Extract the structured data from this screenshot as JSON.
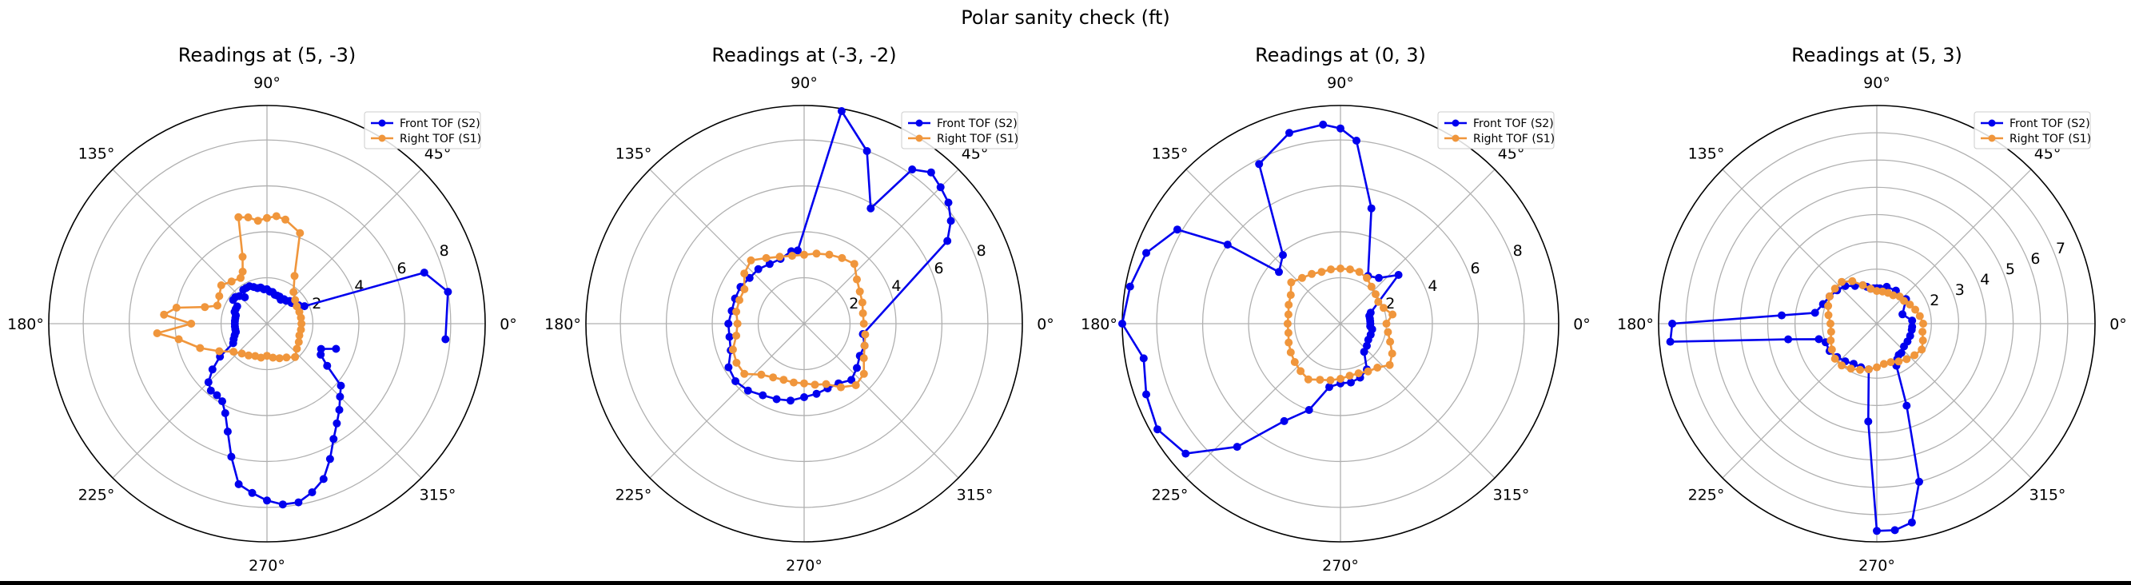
{
  "figure": {
    "title": "Polar sanity check (ft)"
  },
  "colors": {
    "front": "#0000ee",
    "right": "#f0963c",
    "grid": "#b0b0b0",
    "frame": "#000000"
  },
  "angle_ticks": [
    "0°",
    "45°",
    "90°",
    "135°",
    "180°",
    "225°",
    "270°",
    "315°"
  ],
  "chart_data": [
    {
      "type": "polar-line",
      "title": "Readings at (5, -3)",
      "rmax": 9.5,
      "rticks": [
        2,
        4,
        6,
        8
      ],
      "legend": "top-right",
      "series": [
        {
          "name": "Front TOF (S2)",
          "color": "#0000ee",
          "theta": [
            -5,
            10,
            18,
            25,
            30,
            35,
            40,
            45,
            50,
            55,
            60,
            65,
            70,
            75,
            80,
            85,
            90,
            95,
            100,
            105,
            110,
            115,
            120,
            125,
            130,
            135,
            140,
            145,
            150,
            155,
            160,
            165,
            170,
            175,
            180,
            185,
            190,
            195,
            200,
            205,
            210,
            215,
            220,
            225,
            230,
            235,
            240,
            245,
            250,
            255,
            260,
            265,
            270,
            275,
            280,
            285,
            290,
            295,
            300,
            305,
            310,
            315,
            320,
            325,
            330,
            335,
            340
          ],
          "r": [
            7.8,
            8.0,
            7.2,
            1.8,
            1.6,
            1.5,
            1.4,
            1.4,
            1.3,
            1.3,
            1.2,
            1.3,
            1.3,
            1.3,
            1.4,
            1.4,
            1.5,
            1.5,
            1.6,
            1.6,
            1.7,
            1.8,
            1.8,
            1.8,
            1.5,
            1.7,
            1.8,
            1.8,
            1.5,
            1.5,
            1.5,
            1.4,
            1.4,
            1.4,
            1.4,
            1.4,
            1.4,
            1.4,
            1.5,
            1.6,
            1.7,
            2.5,
            3.1,
            3.6,
            3.8,
            3.8,
            3.9,
            4.3,
            5.0,
            6.0,
            7.1,
            7.4,
            7.7,
            7.9,
            7.9,
            7.6,
            7.2,
            6.5,
            5.8,
            5.3,
            4.9,
            4.5,
            4.2,
            3.2,
            2.7,
            2.6,
            3.2
          ]
        },
        {
          "name": "Right TOF (S1)",
          "color": "#f0963c",
          "theta": [
            0,
            10,
            20,
            30,
            40,
            50,
            60,
            70,
            80,
            85,
            90,
            95,
            100,
            105,
            110,
            115,
            120,
            130,
            140,
            150,
            160,
            165,
            170,
            175,
            180,
            185,
            190,
            200,
            210,
            220,
            230,
            240,
            250,
            260,
            270,
            280,
            290,
            300,
            310,
            320,
            330,
            340,
            350
          ],
          "r": [
            1.5,
            1.5,
            1.5,
            1.5,
            1.6,
            1.8,
            2.4,
            4.2,
            4.6,
            4.7,
            4.6,
            4.5,
            4.7,
            4.8,
            3.1,
            2.5,
            2.3,
            2.4,
            2.6,
            2.4,
            2.3,
            2.8,
            4.0,
            4.5,
            3.3,
            4.8,
            3.9,
            3.1,
            2.4,
            1.9,
            1.7,
            1.6,
            1.5,
            1.5,
            1.4,
            1.5,
            1.6,
            1.7,
            1.9,
            1.7,
            1.6,
            1.5,
            1.5
          ]
        }
      ]
    },
    {
      "type": "polar-line",
      "title": "Readings at (-3, -2)",
      "rmax": 9.5,
      "rticks": [
        2,
        4,
        6,
        8
      ],
      "legend": "top-right",
      "series": [
        {
          "name": "Front TOF (S2)",
          "color": "#0000ee",
          "theta": [
            -10,
            30,
            35,
            40,
            45,
            50,
            55,
            60,
            70,
            80,
            95,
            100,
            110,
            120,
            130,
            140,
            150,
            160,
            170,
            180,
            190,
            200,
            210,
            220,
            230,
            240,
            250,
            260,
            270,
            280,
            290,
            300,
            310,
            320,
            330,
            340,
            350
          ],
          "r": [
            2.6,
            7.2,
            7.8,
            8.2,
            8.4,
            8.6,
            8.2,
            5.8,
            8.0,
            9.4,
            3.2,
            3.2,
            3.0,
            3.0,
            3.1,
            3.1,
            3.2,
            3.2,
            3.2,
            3.3,
            3.3,
            3.4,
            3.8,
            3.9,
            3.8,
            3.6,
            3.5,
            3.4,
            3.2,
            3.1,
            3.0,
            3.0,
            3.2,
            3.0,
            2.8,
            2.8,
            2.6
          ]
        },
        {
          "name": "Right TOF (S1)",
          "color": "#f0963c",
          "theta": [
            0,
            10,
            20,
            30,
            40,
            50,
            60,
            70,
            80,
            90,
            100,
            110,
            120,
            130,
            140,
            150,
            160,
            170,
            180,
            190,
            200,
            210,
            220,
            230,
            240,
            250,
            260,
            270,
            280,
            290,
            300,
            310,
            320,
            330,
            340,
            350
          ],
          "r": [
            2.6,
            2.6,
            2.7,
            2.8,
            3.0,
            3.4,
            3.3,
            3.2,
            3.1,
            3.0,
            3.0,
            3.1,
            3.3,
            3.6,
            3.4,
            3.0,
            3.0,
            3.0,
            2.9,
            3.0,
            3.3,
            3.4,
            3.4,
            2.9,
            2.7,
            2.6,
            2.6,
            2.6,
            2.7,
            2.8,
            3.2,
            3.5,
            3.4,
            3.0,
            2.8,
            2.7
          ]
        }
      ]
    },
    {
      "type": "polar-line",
      "title": "Readings at (0, 3)",
      "rmax": 9.5,
      "rticks": [
        2,
        4,
        6,
        8
      ],
      "legend": "top-right",
      "series": [
        {
          "name": "Front TOF (S2)",
          "color": "#0000ee",
          "theta": [
            -10,
            -5,
            0,
            5,
            10,
            15,
            20,
            40,
            50,
            60,
            75,
            85,
            90,
            95,
            105,
            117,
            130,
            140,
            145,
            150,
            160,
            170,
            180,
            190,
            200,
            210,
            220,
            230,
            240,
            250,
            260,
            270,
            280,
            290,
            300,
            310,
            320,
            330,
            340,
            350
          ],
          "r": [
            1.4,
            1.3,
            1.3,
            1.3,
            1.3,
            1.3,
            1.4,
            3.3,
            2.6,
            2.4,
            5.2,
            8.0,
            8.5,
            8.7,
            8.6,
            7.8,
            3.9,
            3.5,
            6.0,
            8.2,
            9.0,
            9.3,
            9.5,
            8.7,
            9.0,
            9.2,
            8.8,
            7.0,
            4.9,
            4.0,
            2.8,
            2.6,
            2.6,
            2.5,
            2.3,
            1.6,
            1.5,
            1.4,
            1.4,
            1.4
          ]
        },
        {
          "name": "Right TOF (S1)",
          "color": "#f0963c",
          "theta": [
            0,
            10,
            20,
            30,
            40,
            50,
            60,
            70,
            80,
            90,
            100,
            110,
            120,
            130,
            140,
            150,
            160,
            170,
            180,
            190,
            200,
            210,
            220,
            230,
            240,
            250,
            260,
            270,
            280,
            290,
            300,
            310,
            320,
            330,
            340,
            350
          ],
          "r": [
            2.0,
            2.3,
            2.0,
            1.9,
            2.0,
            2.1,
            2.3,
            2.4,
            2.4,
            2.4,
            2.4,
            2.4,
            2.5,
            2.6,
            2.8,
            2.5,
            2.4,
            2.3,
            2.3,
            2.3,
            2.4,
            2.5,
            2.6,
            2.7,
            2.8,
            2.6,
            2.5,
            2.4,
            2.3,
            2.3,
            2.4,
            2.5,
            2.8,
            2.6,
            2.3,
            2.1
          ]
        }
      ]
    },
    {
      "type": "polar-line",
      "title": "Readings at (5, 3)",
      "rmax": 8,
      "rticks": [
        2,
        3,
        4,
        5,
        6,
        7
      ],
      "legend": "top-right",
      "series": [
        {
          "name": "Front TOF (S2)",
          "color": "#0000ee",
          "theta": [
            -5,
            5,
            20,
            40,
            60,
            75,
            85,
            90,
            95,
            100,
            105,
            110,
            120,
            130,
            140,
            150,
            160,
            170,
            175,
            180,
            185,
            190,
            195,
            200,
            210,
            220,
            230,
            240,
            250,
            260,
            265,
            270,
            275,
            280,
            285,
            290,
            295,
            300,
            305,
            310,
            320,
            330,
            340,
            350
          ],
          "r": [
            1.3,
            1.3,
            1.0,
            1.4,
            1.4,
            1.4,
            1.3,
            1.3,
            1.3,
            1.3,
            1.4,
            1.5,
            1.6,
            1.8,
            1.9,
            2.0,
            2.1,
            2.3,
            3.5,
            7.5,
            7.6,
            3.3,
            2.2,
            2.0,
            2.0,
            1.9,
            1.8,
            1.7,
            1.7,
            1.7,
            3.6,
            7.6,
            7.6,
            7.4,
            6.0,
            3.2,
            1.7,
            1.5,
            1.4,
            1.4,
            1.3,
            1.3,
            1.3,
            1.3
          ]
        },
        {
          "name": "Right TOF (S1)",
          "color": "#f0963c",
          "theta": [
            0,
            10,
            20,
            30,
            40,
            50,
            60,
            70,
            80,
            90,
            100,
            110,
            120,
            130,
            140,
            150,
            160,
            170,
            180,
            190,
            200,
            210,
            220,
            230,
            240,
            250,
            260,
            270,
            280,
            290,
            300,
            310,
            320,
            330,
            340,
            350
          ],
          "r": [
            1.7,
            1.6,
            1.5,
            1.4,
            1.3,
            1.3,
            1.2,
            1.2,
            1.2,
            1.2,
            1.3,
            1.5,
            1.8,
            2.0,
            2.0,
            2.0,
            1.9,
            1.8,
            1.7,
            1.7,
            1.8,
            1.9,
            2.0,
            2.0,
            1.9,
            1.8,
            1.7,
            1.6,
            1.5,
            1.5,
            1.6,
            1.7,
            1.8,
            1.9,
            1.8,
            1.7
          ]
        }
      ]
    }
  ]
}
